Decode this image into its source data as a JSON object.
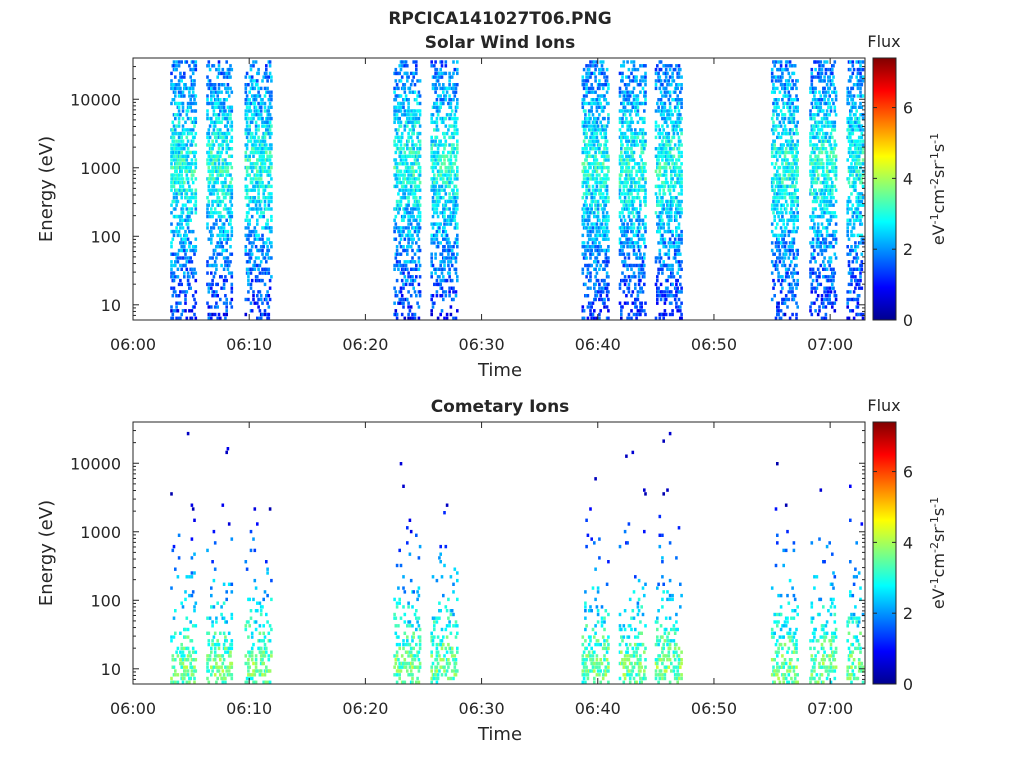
{
  "figure_title": "RPCICA141027T06.PNG",
  "chart_data": [
    {
      "type": "heatmap",
      "title": "Solar Wind Ions",
      "xlabel": "Time",
      "ylabel": "Energy (eV)",
      "x_ticks": [
        "06:00",
        "06:10",
        "06:20",
        "06:30",
        "06:40",
        "06:50",
        "07:00"
      ],
      "x_range_minutes": [
        0,
        63
      ],
      "y_scale": "log",
      "y_range": [
        6,
        40000
      ],
      "y_ticks": [
        10,
        100,
        1000,
        10000
      ],
      "colorbar": {
        "title": "Flux",
        "label": "eV-1cm-2sr-1s-1",
        "ticks": [
          0,
          2,
          4,
          6
        ],
        "range": [
          0,
          7.4
        ],
        "colormap": "jet"
      },
      "bursts_start_minutes": [
        3.2,
        6.3,
        9.6,
        22.4,
        25.6,
        38.6,
        41.8,
        44.9,
        54.9,
        58.2,
        61.4
      ],
      "burst_width_minutes": 2.2,
      "peak_energy_ev": 1000,
      "peak_flux": 3.0
    },
    {
      "type": "heatmap",
      "title": "Cometary Ions",
      "xlabel": "Time",
      "ylabel": "Energy (eV)",
      "x_ticks": [
        "06:00",
        "06:10",
        "06:20",
        "06:30",
        "06:40",
        "06:50",
        "07:00"
      ],
      "x_range_minutes": [
        0,
        63
      ],
      "y_scale": "log",
      "y_range": [
        6,
        40000
      ],
      "y_ticks": [
        10,
        100,
        1000,
        10000
      ],
      "colorbar": {
        "title": "Flux",
        "label": "eV-1cm-2sr-1s-1",
        "ticks": [
          0,
          2,
          4,
          6
        ],
        "range": [
          0,
          7.4
        ],
        "colormap": "jet"
      },
      "bursts_start_minutes": [
        3.2,
        6.3,
        9.6,
        22.4,
        25.6,
        38.6,
        41.8,
        44.9,
        54.9,
        58.2,
        61.4
      ],
      "burst_width_minutes": 2.2,
      "peak_energy_ev": 10,
      "peak_flux": 3.6
    }
  ]
}
